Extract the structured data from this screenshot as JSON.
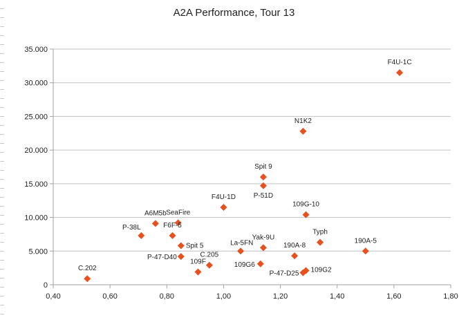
{
  "chart_data": {
    "type": "scatter",
    "title": "A2A Performance, Tour 13",
    "xlabel": "",
    "ylabel": "",
    "xlim": [
      0.4,
      1.8
    ],
    "ylim": [
      0,
      35000
    ],
    "x_ticks": [
      "0,40",
      "0,60",
      "0,80",
      "1,00",
      "1,20",
      "1,40",
      "1,60",
      "1,80"
    ],
    "y_ticks": [
      "0",
      "5.000",
      "10.000",
      "15.000",
      "20.000",
      "25.000",
      "30.000",
      "35.000"
    ],
    "grid": "horizontal",
    "legend": "none",
    "marker_color": "#e8501e",
    "points": [
      {
        "label": "F4U-1C",
        "x": 1.62,
        "y": 31500
      },
      {
        "label": "N1K2",
        "x": 1.28,
        "y": 22800
      },
      {
        "label": "Spit 9",
        "x": 1.14,
        "y": 16000
      },
      {
        "label": "P-51D",
        "x": 1.14,
        "y": 14700
      },
      {
        "label": "F4U-1D",
        "x": 1.0,
        "y": 11500
      },
      {
        "label": "109G-10",
        "x": 1.29,
        "y": 10400
      },
      {
        "label": "A6M5b",
        "x": 0.76,
        "y": 9100
      },
      {
        "label": "SeaFire",
        "x": 0.84,
        "y": 9200
      },
      {
        "label": "P-38L",
        "x": 0.71,
        "y": 7300
      },
      {
        "label": "F6F-5",
        "x": 0.82,
        "y": 7300
      },
      {
        "label": "Spit 5",
        "x": 0.85,
        "y": 5800
      },
      {
        "label": "P-47-D40",
        "x": 0.85,
        "y": 4200
      },
      {
        "label": "C.205",
        "x": 0.95,
        "y": 2900
      },
      {
        "label": "109F",
        "x": 0.91,
        "y": 1900
      },
      {
        "label": "La-5FN",
        "x": 1.06,
        "y": 5000
      },
      {
        "label": "Yak-9U",
        "x": 1.14,
        "y": 5500
      },
      {
        "label": "109G6",
        "x": 1.13,
        "y": 3100
      },
      {
        "label": "190A-8",
        "x": 1.25,
        "y": 4300
      },
      {
        "label": "P-47-D25",
        "x": 1.28,
        "y": 1800
      },
      {
        "label": "109G2",
        "x": 1.29,
        "y": 2100
      },
      {
        "label": "Typh",
        "x": 1.34,
        "y": 6300
      },
      {
        "label": "190A-5",
        "x": 1.5,
        "y": 5000
      },
      {
        "label": "C.202",
        "x": 0.52,
        "y": 900
      }
    ]
  }
}
